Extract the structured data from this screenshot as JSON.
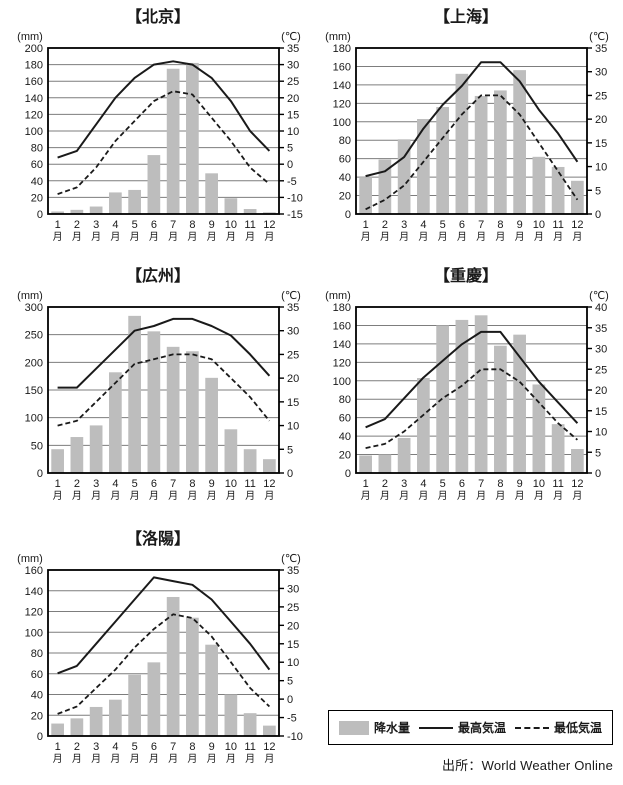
{
  "page": {
    "source": "出所：World Weather Online"
  },
  "legend": {
    "precip_label": "降水量",
    "tmax_label": "最高気温",
    "tmin_label": "最低気温"
  },
  "style": {
    "bar_fill": "#bdbdbd",
    "line_color": "#1a1a1a",
    "grid_color": "#7d7d7d",
    "axis_color": "#000000",
    "text_color": "#1a1a1a"
  },
  "chart_data": [
    {
      "type": "bar+line",
      "title": "【北京】",
      "categories": [
        "1月",
        "2月",
        "3月",
        "4月",
        "5月",
        "6月",
        "7月",
        "8月",
        "9月",
        "10月",
        "11月",
        "12月"
      ],
      "left_axis": {
        "unit": "(mm)",
        "min": 0,
        "max": 200,
        "step": 20
      },
      "right_axis": {
        "unit": "(℃)",
        "min": -15,
        "max": 35,
        "step": 5
      },
      "series": [
        {
          "name": "降水量",
          "kind": "bar",
          "axis": "left",
          "values": [
            3,
            5,
            9,
            26,
            29,
            71,
            175,
            182,
            49,
            19,
            6,
            2
          ]
        },
        {
          "name": "最高気温",
          "kind": "line",
          "line_style": "solid",
          "axis": "right",
          "values": [
            2,
            4,
            12,
            20,
            26,
            30,
            31,
            30,
            26,
            19,
            10,
            4
          ]
        },
        {
          "name": "最低気温",
          "kind": "line",
          "line_style": "dashed",
          "axis": "right",
          "values": [
            -9,
            -7,
            -1,
            7,
            13,
            19,
            22,
            21,
            14,
            7,
            -1,
            -6
          ]
        }
      ]
    },
    {
      "type": "bar+line",
      "title": "【上海】",
      "categories": [
        "1月",
        "2月",
        "3月",
        "4月",
        "5月",
        "6月",
        "7月",
        "8月",
        "9月",
        "10月",
        "11月",
        "12月"
      ],
      "left_axis": {
        "unit": "(mm)",
        "min": 0,
        "max": 180,
        "step": 20
      },
      "right_axis": {
        "unit": "(℃)",
        "min": 0,
        "max": 35,
        "step": 5
      },
      "series": [
        {
          "name": "降水量",
          "kind": "bar",
          "axis": "left",
          "values": [
            40,
            59,
            81,
            103,
            116,
            152,
            128,
            134,
            156,
            62,
            51,
            36
          ]
        },
        {
          "name": "最高気温",
          "kind": "line",
          "line_style": "solid",
          "axis": "right",
          "values": [
            8,
            9,
            12,
            18,
            23,
            27,
            32,
            32,
            28,
            22,
            17,
            11
          ]
        },
        {
          "name": "最低気温",
          "kind": "line",
          "line_style": "dashed",
          "axis": "right",
          "values": [
            1,
            3,
            6,
            11,
            16,
            21,
            25,
            25,
            21,
            15,
            9,
            3
          ]
        }
      ]
    },
    {
      "type": "bar+line",
      "title": "【広州】",
      "categories": [
        "1月",
        "2月",
        "3月",
        "4月",
        "5月",
        "6月",
        "7月",
        "8月",
        "9月",
        "10月",
        "11月",
        "12月"
      ],
      "left_axis": {
        "unit": "(mm)",
        "min": 0,
        "max": 300,
        "step": 50
      },
      "right_axis": {
        "unit": "(℃)",
        "min": 0,
        "max": 35,
        "step": 5
      },
      "series": [
        {
          "name": "降水量",
          "kind": "bar",
          "axis": "left",
          "values": [
            43,
            65,
            86,
            182,
            284,
            256,
            228,
            220,
            172,
            79,
            43,
            25
          ]
        },
        {
          "name": "最高気温",
          "kind": "line",
          "line_style": "solid",
          "axis": "right",
          "values": [
            18,
            18,
            22,
            26,
            30,
            31,
            32.5,
            32.5,
            31,
            29,
            25,
            20.5
          ]
        },
        {
          "name": "最低気温",
          "kind": "line",
          "line_style": "dashed",
          "axis": "right",
          "values": [
            10,
            11,
            15,
            19,
            23,
            24,
            25,
            25,
            24,
            20,
            16,
            11
          ]
        }
      ]
    },
    {
      "type": "bar+line",
      "title": "【重慶】",
      "categories": [
        "1月",
        "2月",
        "3月",
        "4月",
        "5月",
        "6月",
        "7月",
        "8月",
        "9月",
        "10月",
        "11月",
        "12月"
      ],
      "left_axis": {
        "unit": "(mm)",
        "min": 0,
        "max": 180,
        "step": 20
      },
      "right_axis": {
        "unit": "(℃)",
        "min": 0,
        "max": 40,
        "step": 5
      },
      "series": [
        {
          "name": "降水量",
          "kind": "bar",
          "axis": "left",
          "values": [
            19,
            20,
            38,
            103,
            160,
            166,
            171,
            138,
            150,
            96,
            53,
            26
          ]
        },
        {
          "name": "最高気温",
          "kind": "line",
          "line_style": "solid",
          "axis": "right",
          "values": [
            11,
            13,
            18,
            23,
            27,
            31,
            34,
            34,
            28,
            22,
            17,
            12
          ]
        },
        {
          "name": "最低気温",
          "kind": "line",
          "line_style": "dashed",
          "axis": "right",
          "values": [
            6,
            7,
            10,
            14,
            18,
            21,
            25,
            25,
            22,
            17,
            12,
            8
          ]
        }
      ]
    },
    {
      "type": "bar+line",
      "title": "【洛陽】",
      "categories": [
        "1月",
        "2月",
        "3月",
        "4月",
        "5月",
        "6月",
        "7月",
        "8月",
        "9月",
        "10月",
        "11月",
        "12月"
      ],
      "left_axis": {
        "unit": "(mm)",
        "min": 0,
        "max": 160,
        "step": 20
      },
      "right_axis": {
        "unit": "(℃)",
        "min": -10,
        "max": 35,
        "step": 5
      },
      "series": [
        {
          "name": "降水量",
          "kind": "bar",
          "axis": "left",
          "values": [
            12,
            17,
            28,
            35,
            59,
            71,
            134,
            114,
            88,
            40,
            22,
            10
          ]
        },
        {
          "name": "最高気温",
          "kind": "line",
          "line_style": "solid",
          "axis": "right",
          "values": [
            7,
            9,
            15,
            21,
            27,
            33,
            32,
            31,
            27,
            21,
            15,
            8
          ]
        },
        {
          "name": "最低気温",
          "kind": "line",
          "line_style": "dashed",
          "axis": "right",
          "values": [
            -4,
            -2,
            3,
            8,
            14,
            19,
            23,
            22,
            17,
            10,
            3,
            -2
          ]
        }
      ]
    }
  ]
}
